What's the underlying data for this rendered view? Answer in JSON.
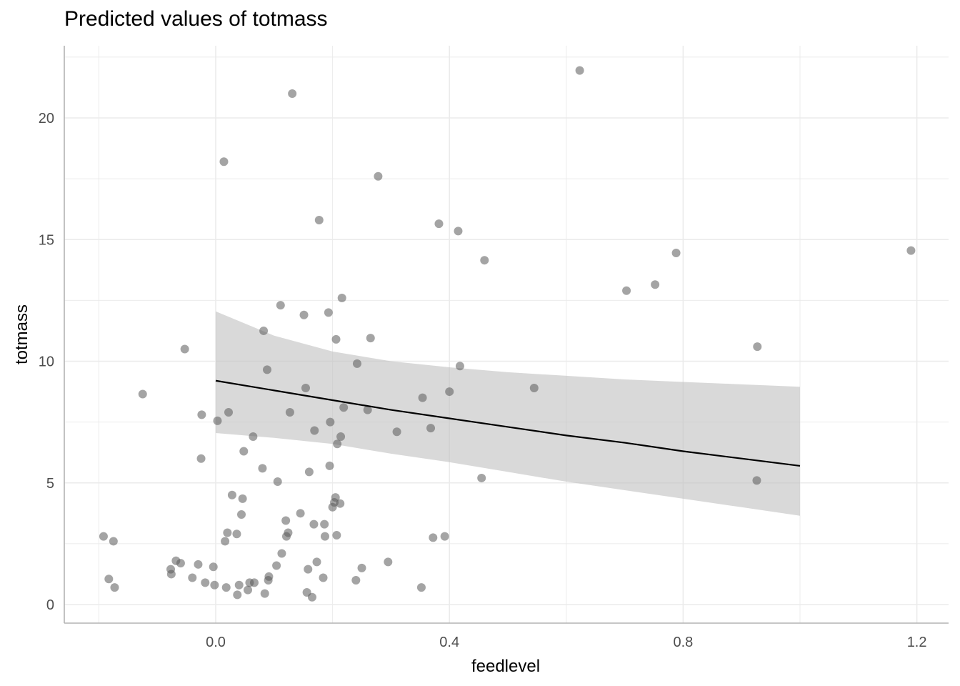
{
  "chart_data": {
    "type": "scatter",
    "title": "Predicted values of totmass",
    "xlabel": "feedlevel",
    "ylabel": "totmass",
    "xlim": [
      -0.25,
      1.25
    ],
    "ylim": [
      -0.8,
      22.5
    ],
    "x_ticks": [
      0.0,
      0.4,
      0.8,
      1.2
    ],
    "x_tick_labels": [
      "0.0",
      "0.4",
      "0.8",
      "1.2"
    ],
    "y_ticks": [
      0,
      5,
      10,
      15,
      20
    ],
    "y_tick_labels": [
      "0",
      "5",
      "10",
      "15",
      "20"
    ],
    "grid": true,
    "legend": "none",
    "colors": {
      "points": "#595959",
      "line": "#000000",
      "ribbon": "#bfbfbf",
      "grid": "#ebebeb",
      "axis": "#b3b3b3"
    },
    "points": [
      [
        -0.192,
        2.8
      ],
      [
        -0.183,
        1.05
      ],
      [
        -0.175,
        2.6
      ],
      [
        -0.173,
        0.7
      ],
      [
        -0.125,
        8.65
      ],
      [
        -0.077,
        1.45
      ],
      [
        -0.076,
        1.25
      ],
      [
        -0.068,
        1.8
      ],
      [
        -0.06,
        1.7
      ],
      [
        -0.053,
        10.5
      ],
      [
        -0.04,
        1.1
      ],
      [
        -0.03,
        1.65
      ],
      [
        -0.025,
        6.0
      ],
      [
        -0.024,
        7.8
      ],
      [
        -0.018,
        0.9
      ],
      [
        -0.004,
        1.55
      ],
      [
        -0.002,
        0.8
      ],
      [
        0.003,
        7.55
      ],
      [
        0.014,
        18.2
      ],
      [
        0.016,
        2.6
      ],
      [
        0.018,
        0.7
      ],
      [
        0.02,
        2.95
      ],
      [
        0.022,
        7.9
      ],
      [
        0.028,
        4.5
      ],
      [
        0.036,
        2.9
      ],
      [
        0.037,
        0.4
      ],
      [
        0.04,
        0.8
      ],
      [
        0.044,
        3.7
      ],
      [
        0.046,
        4.35
      ],
      [
        0.048,
        6.3
      ],
      [
        0.055,
        0.6
      ],
      [
        0.058,
        0.9
      ],
      [
        0.064,
        6.9
      ],
      [
        0.066,
        0.9
      ],
      [
        0.08,
        5.6
      ],
      [
        0.082,
        11.25
      ],
      [
        0.084,
        0.45
      ],
      [
        0.088,
        9.65
      ],
      [
        0.09,
        1.0
      ],
      [
        0.091,
        1.15
      ],
      [
        0.104,
        1.6
      ],
      [
        0.106,
        5.05
      ],
      [
        0.111,
        12.3
      ],
      [
        0.113,
        2.1
      ],
      [
        0.12,
        3.45
      ],
      [
        0.121,
        2.8
      ],
      [
        0.124,
        2.95
      ],
      [
        0.127,
        7.9
      ],
      [
        0.131,
        21.0
      ],
      [
        0.145,
        3.75
      ],
      [
        0.151,
        11.9
      ],
      [
        0.154,
        8.9
      ],
      [
        0.156,
        0.5
      ],
      [
        0.158,
        1.45
      ],
      [
        0.16,
        5.45
      ],
      [
        0.165,
        0.3
      ],
      [
        0.168,
        3.3
      ],
      [
        0.169,
        7.15
      ],
      [
        0.173,
        1.75
      ],
      [
        0.177,
        15.8
      ],
      [
        0.184,
        1.1
      ],
      [
        0.186,
        3.3
      ],
      [
        0.187,
        2.8
      ],
      [
        0.193,
        12.0
      ],
      [
        0.195,
        5.7
      ],
      [
        0.196,
        7.5
      ],
      [
        0.2,
        4.0
      ],
      [
        0.203,
        4.2
      ],
      [
        0.205,
        4.4
      ],
      [
        0.206,
        10.9
      ],
      [
        0.207,
        2.85
      ],
      [
        0.208,
        6.6
      ],
      [
        0.213,
        4.15
      ],
      [
        0.214,
        6.9
      ],
      [
        0.216,
        12.6
      ],
      [
        0.219,
        8.1
      ],
      [
        0.24,
        1.0
      ],
      [
        0.242,
        9.9
      ],
      [
        0.25,
        1.5
      ],
      [
        0.26,
        8.0
      ],
      [
        0.265,
        10.95
      ],
      [
        0.278,
        17.6
      ],
      [
        0.295,
        1.75
      ],
      [
        0.31,
        7.1
      ],
      [
        0.352,
        0.7
      ],
      [
        0.354,
        8.5
      ],
      [
        0.368,
        7.25
      ],
      [
        0.372,
        2.75
      ],
      [
        0.382,
        15.65
      ],
      [
        0.392,
        2.8
      ],
      [
        0.4,
        8.75
      ],
      [
        0.415,
        15.35
      ],
      [
        0.418,
        9.8
      ],
      [
        0.455,
        5.2
      ],
      [
        0.46,
        14.15
      ],
      [
        0.545,
        8.9
      ],
      [
        0.623,
        21.95
      ],
      [
        0.703,
        12.9
      ],
      [
        0.752,
        13.15
      ],
      [
        0.788,
        14.45
      ],
      [
        0.927,
        10.6
      ],
      [
        0.926,
        5.1
      ],
      [
        1.19,
        14.55
      ]
    ],
    "fit": {
      "x": [
        0.0,
        0.1,
        0.2,
        0.3,
        0.4,
        0.5,
        0.6,
        0.7,
        0.8,
        0.9,
        1.0
      ],
      "predicted": [
        9.2,
        8.8,
        8.4,
        8.0,
        7.65,
        7.3,
        6.95,
        6.65,
        6.3,
        6.0,
        5.7
      ],
      "conf_low": [
        7.05,
        6.85,
        6.6,
        6.2,
        5.85,
        5.45,
        5.05,
        4.7,
        4.35,
        4.0,
        3.65
      ],
      "conf_high": [
        12.05,
        11.05,
        10.4,
        10.0,
        9.75,
        9.55,
        9.4,
        9.25,
        9.15,
        9.05,
        8.95
      ]
    }
  }
}
